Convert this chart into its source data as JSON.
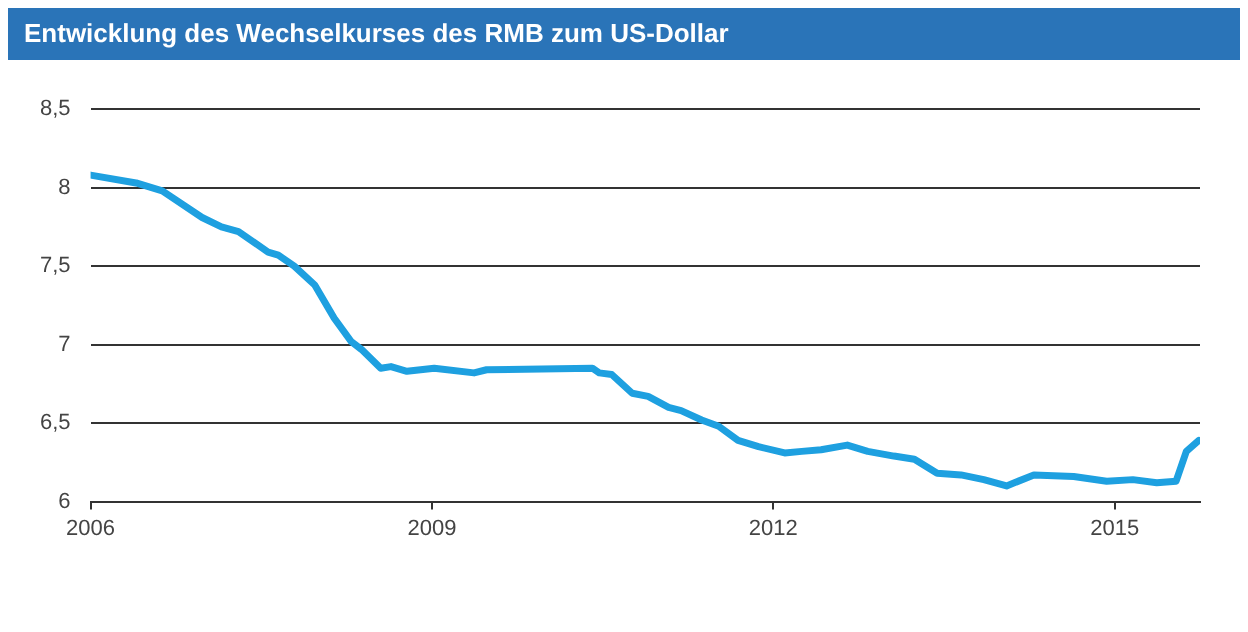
{
  "chart_data": {
    "type": "line",
    "title": "Entwicklung des Wechselkurses des RMB zum US-Dollar",
    "x": [
      2006,
      2006.4,
      2006.63,
      2006.98,
      2007.15,
      2007.3,
      2007.56,
      2007.65,
      2007.79,
      2007.97,
      2008.14,
      2008.29,
      2008.38,
      2008.55,
      2008.64,
      2008.78,
      2009.02,
      2009.37,
      2009.48,
      2010.41,
      2010.47,
      2010.58,
      2010.76,
      2010.9,
      2011.08,
      2011.19,
      2011.37,
      2011.52,
      2011.69,
      2011.87,
      2012.1,
      2012.25,
      2012.42,
      2012.65,
      2012.83,
      2013.06,
      2013.24,
      2013.44,
      2013.65,
      2013.85,
      2014.05,
      2014.29,
      2014.64,
      2014.93,
      2015.16,
      2015.37,
      2015.54,
      2015.63,
      2015.74
    ],
    "series": [
      {
        "color": "#1ea0e0",
        "values": [
          8.08,
          8.03,
          7.98,
          7.81,
          7.75,
          7.72,
          7.59,
          7.57,
          7.5,
          7.38,
          7.17,
          7.02,
          6.97,
          6.85,
          6.86,
          6.83,
          6.85,
          6.82,
          6.84,
          6.85,
          6.82,
          6.81,
          6.69,
          6.67,
          6.6,
          6.58,
          6.52,
          6.48,
          6.39,
          6.35,
          6.31,
          6.32,
          6.33,
          6.36,
          6.32,
          6.29,
          6.27,
          6.18,
          6.17,
          6.14,
          6.1,
          6.17,
          6.16,
          6.13,
          6.14,
          6.12,
          6.13,
          6.32,
          6.39
        ]
      }
    ],
    "xlim": [
      2006,
      2015.75
    ],
    "xticks": [
      2006,
      2009,
      2012,
      2015
    ],
    "ylim": [
      6,
      8.5
    ],
    "yticks": [
      {
        "value": 6,
        "label": "6"
      },
      {
        "value": 6.5,
        "label": "6,5"
      },
      {
        "value": 7,
        "label": "7"
      },
      {
        "value": 7.5,
        "label": "7,5"
      },
      {
        "value": 8,
        "label": "8"
      },
      {
        "value": 8.5,
        "label": "8,5"
      }
    ],
    "grid": "y",
    "legend": false,
    "marker": "none",
    "line_style": "solid"
  }
}
